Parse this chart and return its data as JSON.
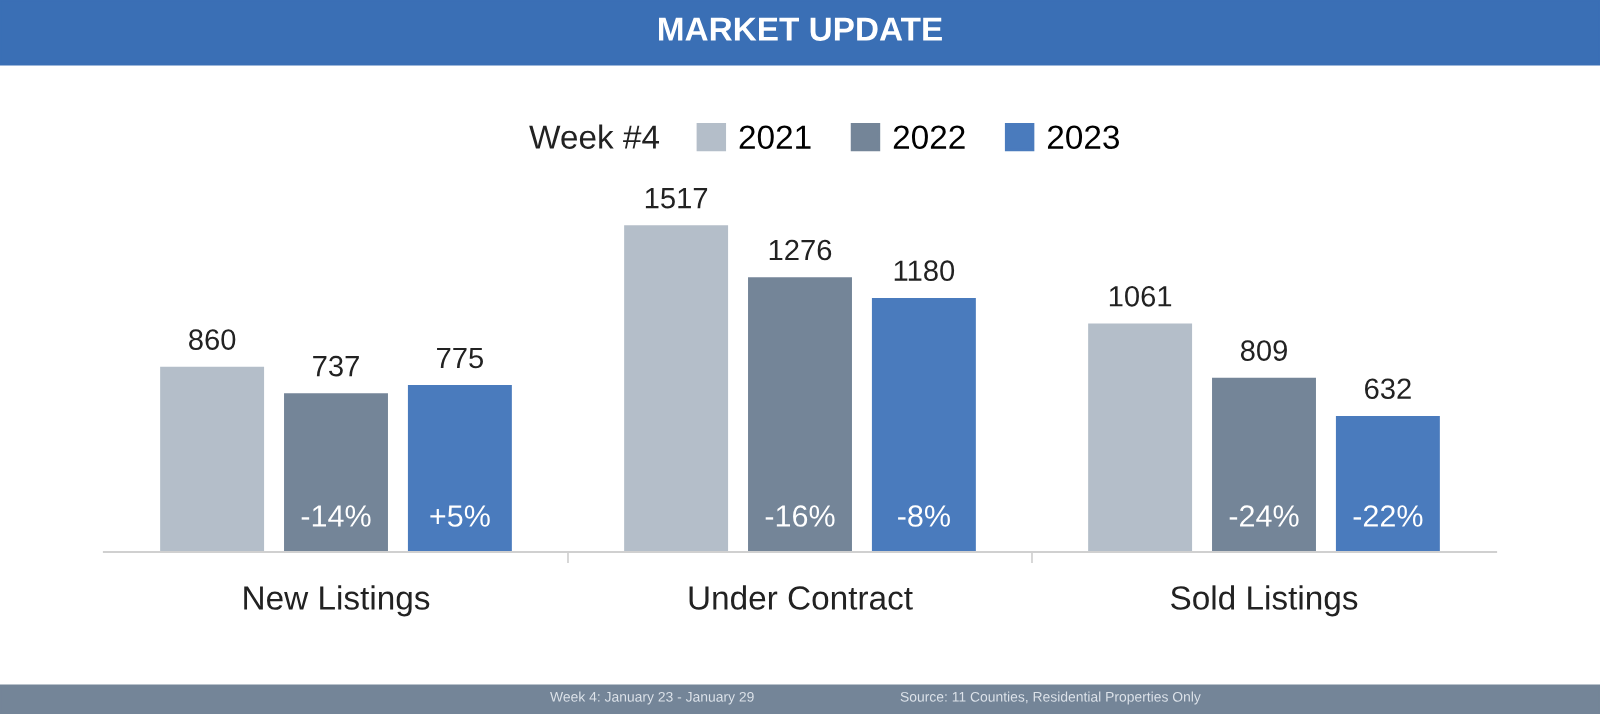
{
  "chart_data": {
    "type": "bar",
    "title": "MARKET UPDATE",
    "categories": [
      "New Listings",
      "Under Contract",
      "Sold Listings"
    ],
    "legend_title": "Week #4",
    "legend": "top",
    "data_labels": true,
    "grid": false,
    "series": [
      {
        "name": "2021",
        "color": "#b4bec9",
        "values": [
          860,
          1517,
          1061
        ]
      },
      {
        "name": "2022",
        "color": "#748598",
        "values": [
          737,
          1276,
          809
        ]
      },
      {
        "name": "2023",
        "color": "#4a7bbd",
        "values": [
          775,
          1180,
          632
        ]
      }
    ],
    "annotations": [
      "-14%",
      "+5%",
      "-16%",
      "-8%",
      "-24%",
      "-22%",
      "Week 4: January 23 - January 29",
      "Source: 11 Counties, Residential Properties Only"
    ]
  }
}
